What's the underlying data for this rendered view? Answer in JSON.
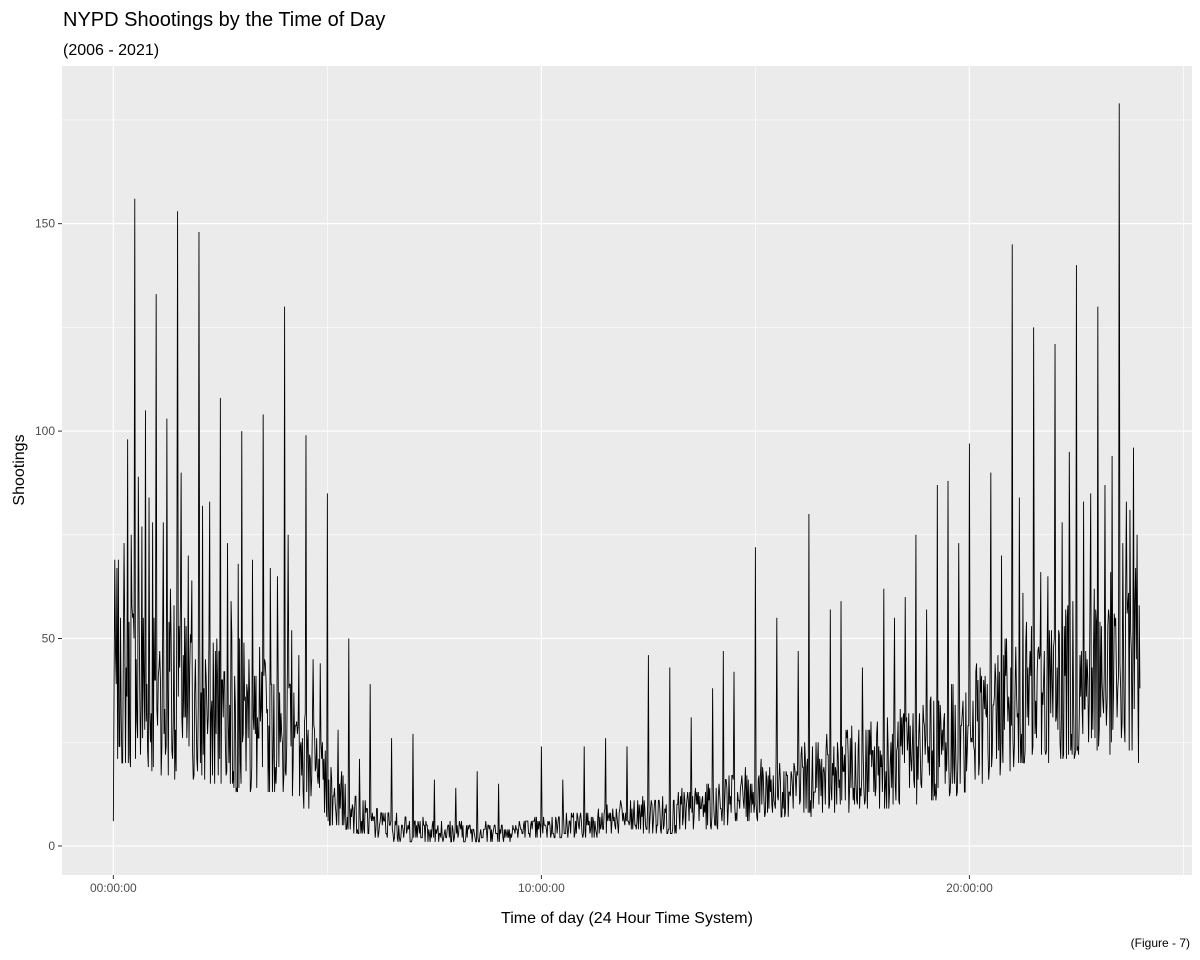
{
  "chart_data": {
    "type": "line",
    "title": "NYPD Shootings by the Time of Day",
    "subtitle": "(2006 - 2021)",
    "xlabel": "Time of day (24 Hour Time System)",
    "ylabel": "Shootings",
    "caption": "(Figure - 7)",
    "x_ticks": [
      {
        "label": "00:00:00",
        "hour": 0
      },
      {
        "label": "10:00:00",
        "hour": 10
      },
      {
        "label": "20:00:00",
        "hour": 20
      }
    ],
    "y_ticks": [
      0,
      50,
      100,
      150
    ],
    "xlim_hours": [
      -1.2,
      25.2
    ],
    "ylim": [
      -7,
      188
    ],
    "grid": true,
    "line_color": "#000000",
    "panel_background": "#ebebeb",
    "grid_color": "#ffffff",
    "sampling": "one value per minute of the day (1440 values); values below are hourly baseline/typical counts and notable spikes",
    "hourly_baseline": [
      {
        "hour": 0,
        "low": 20,
        "high": 70
      },
      {
        "hour": 1,
        "low": 17,
        "high": 65
      },
      {
        "hour": 2,
        "low": 15,
        "high": 55
      },
      {
        "hour": 3,
        "low": 13,
        "high": 50
      },
      {
        "hour": 4,
        "low": 12,
        "high": 45
      },
      {
        "hour": 5,
        "low": 5,
        "high": 22
      },
      {
        "hour": 6,
        "low": 2,
        "high": 10
      },
      {
        "hour": 7,
        "low": 1,
        "high": 7
      },
      {
        "hour": 8,
        "low": 1,
        "high": 6
      },
      {
        "hour": 9,
        "low": 1,
        "high": 6
      },
      {
        "hour": 10,
        "low": 2,
        "high": 7
      },
      {
        "hour": 11,
        "low": 2,
        "high": 9
      },
      {
        "hour": 12,
        "low": 3,
        "high": 11
      },
      {
        "hour": 13,
        "low": 3,
        "high": 13
      },
      {
        "hour": 14,
        "low": 4,
        "high": 16
      },
      {
        "hour": 15,
        "low": 6,
        "high": 20
      },
      {
        "hour": 16,
        "low": 7,
        "high": 24
      },
      {
        "hour": 17,
        "low": 8,
        "high": 28
      },
      {
        "hour": 18,
        "low": 9,
        "high": 32
      },
      {
        "hour": 19,
        "low": 10,
        "high": 36
      },
      {
        "hour": 20,
        "low": 13,
        "high": 42
      },
      {
        "hour": 21,
        "low": 18,
        "high": 52
      },
      {
        "hour": 22,
        "low": 20,
        "high": 58
      },
      {
        "hour": 23,
        "low": 22,
        "high": 65
      }
    ],
    "spikes": [
      {
        "time": "00:00",
        "value": 6
      },
      {
        "time": "00:05",
        "value": 67
      },
      {
        "time": "00:10",
        "value": 55
      },
      {
        "time": "00:15",
        "value": 73
      },
      {
        "time": "00:20",
        "value": 98
      },
      {
        "time": "00:25",
        "value": 75
      },
      {
        "time": "00:30",
        "value": 156
      },
      {
        "time": "00:35",
        "value": 89
      },
      {
        "time": "00:40",
        "value": 77
      },
      {
        "time": "00:45",
        "value": 105
      },
      {
        "time": "00:50",
        "value": 84
      },
      {
        "time": "00:55",
        "value": 78
      },
      {
        "time": "01:00",
        "value": 133
      },
      {
        "time": "01:10",
        "value": 78
      },
      {
        "time": "01:15",
        "value": 103
      },
      {
        "time": "01:20",
        "value": 62
      },
      {
        "time": "01:25",
        "value": 58
      },
      {
        "time": "01:30",
        "value": 153
      },
      {
        "time": "01:35",
        "value": 90
      },
      {
        "time": "01:45",
        "value": 70
      },
      {
        "time": "01:50",
        "value": 64
      },
      {
        "time": "02:00",
        "value": 148
      },
      {
        "time": "02:05",
        "value": 82
      },
      {
        "time": "02:15",
        "value": 83
      },
      {
        "time": "02:30",
        "value": 108
      },
      {
        "time": "02:40",
        "value": 73
      },
      {
        "time": "02:45",
        "value": 59
      },
      {
        "time": "02:55",
        "value": 68
      },
      {
        "time": "03:00",
        "value": 100
      },
      {
        "time": "03:15",
        "value": 69
      },
      {
        "time": "03:30",
        "value": 104
      },
      {
        "time": "03:40",
        "value": 67
      },
      {
        "time": "03:50",
        "value": 65
      },
      {
        "time": "04:00",
        "value": 130
      },
      {
        "time": "04:05",
        "value": 75
      },
      {
        "time": "04:10",
        "value": 52
      },
      {
        "time": "04:20",
        "value": 46
      },
      {
        "time": "04:30",
        "value": 99
      },
      {
        "time": "04:40",
        "value": 45
      },
      {
        "time": "04:50",
        "value": 44
      },
      {
        "time": "05:00",
        "value": 85
      },
      {
        "time": "05:15",
        "value": 28
      },
      {
        "time": "05:30",
        "value": 50
      },
      {
        "time": "05:45",
        "value": 21
      },
      {
        "time": "06:00",
        "value": 39
      },
      {
        "time": "06:30",
        "value": 26
      },
      {
        "time": "07:00",
        "value": 27
      },
      {
        "time": "07:30",
        "value": 16
      },
      {
        "time": "08:00",
        "value": 14
      },
      {
        "time": "08:30",
        "value": 18
      },
      {
        "time": "09:00",
        "value": 15
      },
      {
        "time": "10:00",
        "value": 24
      },
      {
        "time": "10:30",
        "value": 16
      },
      {
        "time": "11:00",
        "value": 24
      },
      {
        "time": "11:30",
        "value": 26
      },
      {
        "time": "12:00",
        "value": 24
      },
      {
        "time": "12:30",
        "value": 46
      },
      {
        "time": "13:00",
        "value": 43
      },
      {
        "time": "13:30",
        "value": 31
      },
      {
        "time": "14:00",
        "value": 38
      },
      {
        "time": "14:15",
        "value": 47
      },
      {
        "time": "14:30",
        "value": 42
      },
      {
        "time": "15:00",
        "value": 72
      },
      {
        "time": "15:30",
        "value": 55
      },
      {
        "time": "16:00",
        "value": 47
      },
      {
        "time": "16:15",
        "value": 80
      },
      {
        "time": "16:45",
        "value": 57
      },
      {
        "time": "17:00",
        "value": 59
      },
      {
        "time": "17:30",
        "value": 43
      },
      {
        "time": "18:00",
        "value": 62
      },
      {
        "time": "18:15",
        "value": 55
      },
      {
        "time": "18:30",
        "value": 60
      },
      {
        "time": "18:45",
        "value": 75
      },
      {
        "time": "19:00",
        "value": 57
      },
      {
        "time": "19:15",
        "value": 87
      },
      {
        "time": "19:30",
        "value": 88
      },
      {
        "time": "19:45",
        "value": 73
      },
      {
        "time": "20:00",
        "value": 97
      },
      {
        "time": "20:30",
        "value": 90
      },
      {
        "time": "20:45",
        "value": 70
      },
      {
        "time": "21:00",
        "value": 145
      },
      {
        "time": "21:10",
        "value": 84
      },
      {
        "time": "21:15",
        "value": 61
      },
      {
        "time": "21:30",
        "value": 125
      },
      {
        "time": "21:40",
        "value": 66
      },
      {
        "time": "21:50",
        "value": 65
      },
      {
        "time": "22:00",
        "value": 121
      },
      {
        "time": "22:10",
        "value": 78
      },
      {
        "time": "22:20",
        "value": 95
      },
      {
        "time": "22:30",
        "value": 140
      },
      {
        "time": "22:40",
        "value": 83
      },
      {
        "time": "22:50",
        "value": 85
      },
      {
        "time": "23:00",
        "value": 130
      },
      {
        "time": "23:10",
        "value": 87
      },
      {
        "time": "23:20",
        "value": 94
      },
      {
        "time": "23:30",
        "value": 179
      },
      {
        "time": "23:35",
        "value": 73
      },
      {
        "time": "23:40",
        "value": 83
      },
      {
        "time": "23:45",
        "value": 81
      },
      {
        "time": "23:50",
        "value": 96
      },
      {
        "time": "23:55",
        "value": 75
      },
      {
        "time": "23:59",
        "value": 38
      }
    ]
  }
}
